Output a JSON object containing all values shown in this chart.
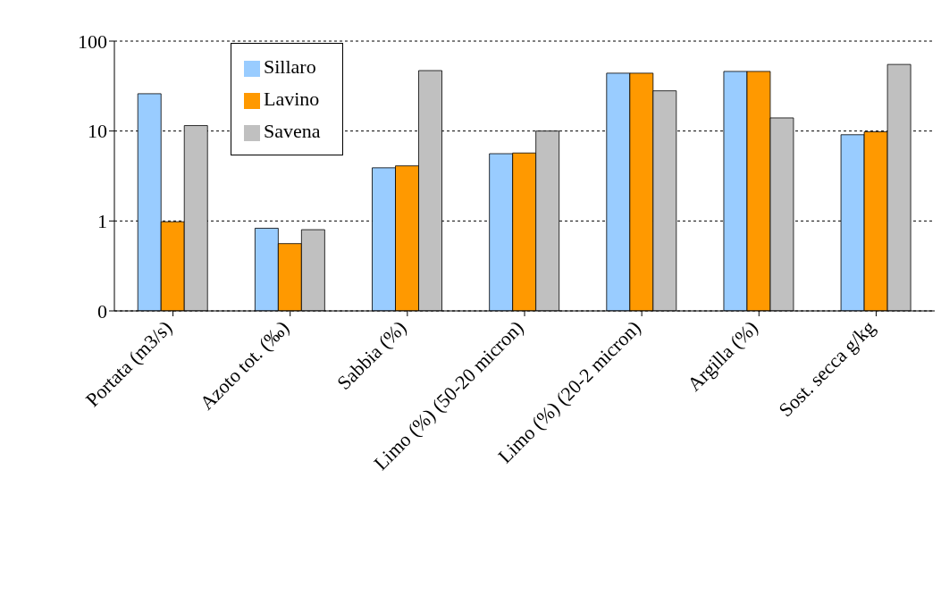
{
  "chart_data": {
    "type": "bar",
    "categories": [
      "Portata (m3/s)",
      "Azoto tot. (‰)",
      "Sabbia (%)",
      "Limo (%) (50-20 micron)",
      "Limo (%) (20-2 micron)",
      "Argilla (%)",
      "Sost. secca g/kg"
    ],
    "series": [
      {
        "name": "Sillaro",
        "color": "#99ccff",
        "values": [
          26,
          0.83,
          3.9,
          5.6,
          44,
          46,
          9.1
        ]
      },
      {
        "name": "Lavino",
        "color": "#ff9900",
        "values": [
          0.98,
          0.56,
          4.1,
          5.7,
          44,
          46,
          9.8
        ]
      },
      {
        "name": "Savena",
        "color": "#c0c0c0",
        "values": [
          11.5,
          0.8,
          47,
          10,
          28,
          14,
          55
        ]
      }
    ],
    "log": "y",
    "ylim": [
      0.1,
      100
    ],
    "yticks": [
      {
        "value": 0.1,
        "label": "0"
      },
      1,
      10,
      100
    ],
    "grid": "y",
    "legend": "top left"
  }
}
